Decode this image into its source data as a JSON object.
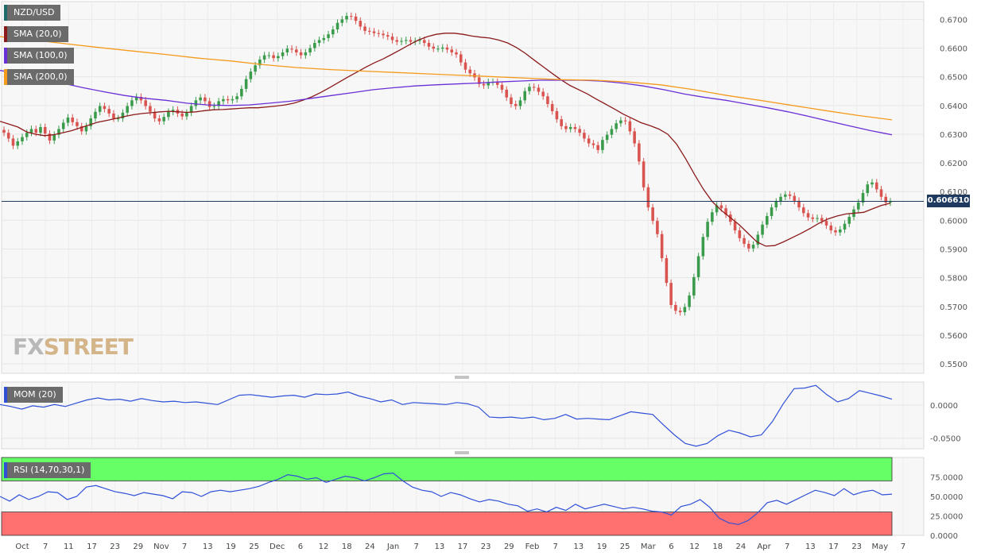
{
  "symbol": "NZD/USD",
  "last_price": "0.606610",
  "logo": {
    "a": "FX",
    "b": "STREET"
  },
  "indicators": {
    "sma20": {
      "label": "SMA (20,0)",
      "color": "#8b1a1a"
    },
    "sma100": {
      "label": "SMA (100,0)",
      "color": "#6a2fd6"
    },
    "sma200": {
      "label": "SMA (200,0)",
      "color": "#f59a1b"
    },
    "mom": {
      "label": "MOM (20)",
      "color": "#3050d8"
    },
    "rsi": {
      "label": "RSI (14,70,30,1)",
      "color": "#3050d8"
    }
  },
  "colors": {
    "bull": "#3a9b4a",
    "bear": "#d9534f",
    "overbought": "#66ff66",
    "oversold": "#ff7070",
    "price_line": "#1e3a5f"
  },
  "chart_data": [
    {
      "type": "candlestick",
      "title": "NZD/USD",
      "x_ticks": [
        "Oct",
        "7",
        "11",
        "17",
        "23",
        "29",
        "Nov",
        "7",
        "13",
        "19",
        "25",
        "Dec",
        "6",
        "12",
        "18",
        "24",
        "Jan",
        "7",
        "13",
        "17",
        "23",
        "29",
        "Feb",
        "7",
        "13",
        "19",
        "25",
        "Mar",
        "6",
        "12",
        "18",
        "24",
        "Apr",
        "7",
        "13",
        "17",
        "23",
        "May",
        "7"
      ],
      "y_ticks": [
        "0.6700",
        "0.6600",
        "0.6500",
        "0.6400",
        "0.6300",
        "0.6200",
        "0.6100",
        "0.6000",
        "0.5900",
        "0.5800",
        "0.5700",
        "0.5600",
        "0.5500"
      ],
      "ylim": [
        0.5467,
        0.6762
      ],
      "close": [
        0.6305,
        0.6285,
        0.626,
        0.6275,
        0.629,
        0.6305,
        0.6318,
        0.6305,
        0.6325,
        0.6302,
        0.6278,
        0.6298,
        0.6318,
        0.634,
        0.6358,
        0.6342,
        0.6328,
        0.631,
        0.6328,
        0.6355,
        0.6378,
        0.6398,
        0.6388,
        0.6372,
        0.6355,
        0.6355,
        0.6375,
        0.6398,
        0.6418,
        0.643,
        0.6418,
        0.6398,
        0.6378,
        0.6355,
        0.6345,
        0.636,
        0.6378,
        0.6385,
        0.6372,
        0.6362,
        0.6375,
        0.6398,
        0.6418,
        0.6428,
        0.6415,
        0.6395,
        0.6398,
        0.6415,
        0.6422,
        0.6418,
        0.6422,
        0.6432,
        0.6458,
        0.6492,
        0.6518,
        0.654,
        0.656,
        0.6575,
        0.6575,
        0.6565,
        0.6572,
        0.6585,
        0.6598,
        0.6595,
        0.6585,
        0.6575,
        0.6585,
        0.66,
        0.6618,
        0.6628,
        0.6635,
        0.6648,
        0.6665,
        0.6688,
        0.67,
        0.6712,
        0.671,
        0.6695,
        0.6675,
        0.666,
        0.6658,
        0.6652,
        0.665,
        0.6645,
        0.664,
        0.6628,
        0.6622,
        0.6625,
        0.6628,
        0.6622,
        0.6625,
        0.6628,
        0.6618,
        0.6605,
        0.6598,
        0.6598,
        0.6602,
        0.6595,
        0.6585,
        0.6578,
        0.655,
        0.6525,
        0.6512,
        0.6498,
        0.6475,
        0.647,
        0.6482,
        0.6482,
        0.6472,
        0.6455,
        0.6428,
        0.6405,
        0.6398,
        0.6418,
        0.645,
        0.6465,
        0.6462,
        0.6448,
        0.6432,
        0.6405,
        0.638,
        0.6352,
        0.6328,
        0.6318,
        0.6325,
        0.6318,
        0.6305,
        0.6285,
        0.6268,
        0.6262,
        0.6245,
        0.628,
        0.6298,
        0.6318,
        0.6338,
        0.6348,
        0.6345,
        0.631,
        0.6268,
        0.6205,
        0.6115,
        0.6045,
        0.5998,
        0.5952,
        0.5868,
        0.5782,
        0.5705,
        0.5685,
        0.568,
        0.5698,
        0.5738,
        0.5802,
        0.5875,
        0.5942,
        0.5995,
        0.6028,
        0.6052,
        0.6042,
        0.602,
        0.5995,
        0.5965,
        0.5938,
        0.5918,
        0.5902,
        0.5915,
        0.595,
        0.5985,
        0.6015,
        0.6045,
        0.6065,
        0.6082,
        0.609,
        0.6085,
        0.6068,
        0.6045,
        0.6025,
        0.601,
        0.6005,
        0.6008,
        0.5998,
        0.5982,
        0.5965,
        0.5958,
        0.5968,
        0.5988,
        0.6012,
        0.6038,
        0.6062,
        0.6095,
        0.6125,
        0.6132,
        0.6108,
        0.6082,
        0.6062,
        0.6066
      ]
    },
    {
      "type": "line",
      "series": [
        {
          "name": "SMA (20,0)",
          "values": [
            0.6345,
            0.6335,
            0.6325,
            0.6308,
            0.63,
            0.6295,
            0.6298,
            0.6305,
            0.6312,
            0.6322,
            0.6332,
            0.6342,
            0.6348,
            0.6355,
            0.6362,
            0.6368,
            0.6372,
            0.6375,
            0.6378,
            0.638,
            0.6378,
            0.6376,
            0.6378,
            0.6382,
            0.6385,
            0.6386,
            0.6388,
            0.639,
            0.6392,
            0.6392,
            0.6395,
            0.6398,
            0.6402,
            0.6408,
            0.6418,
            0.643,
            0.6445,
            0.6462,
            0.648,
            0.6498,
            0.6515,
            0.6532,
            0.6548,
            0.6562,
            0.6578,
            0.6595,
            0.6612,
            0.6628,
            0.664,
            0.6648,
            0.6652,
            0.6652,
            0.6648,
            0.6642,
            0.6638,
            0.6635,
            0.6628,
            0.6618,
            0.6602,
            0.6582,
            0.6558,
            0.6535,
            0.6512,
            0.649,
            0.647,
            0.6455,
            0.644,
            0.6422,
            0.6405,
            0.6388,
            0.637,
            0.6355,
            0.634,
            0.633,
            0.6318,
            0.63,
            0.6265,
            0.6215,
            0.616,
            0.6108,
            0.6065,
            0.6035,
            0.601,
            0.5985,
            0.5955,
            0.5925,
            0.591,
            0.5912,
            0.5925,
            0.594,
            0.5955,
            0.5972,
            0.599,
            0.6005,
            0.6015,
            0.6022,
            0.6025,
            0.6028,
            0.604,
            0.6052,
            0.606
          ]
        },
        {
          "name": "SMA (100,0)",
          "values": [
            0.6522,
            0.651,
            0.6492,
            0.6478,
            0.6462,
            0.6448,
            0.6435,
            0.6425,
            0.6418,
            0.6408,
            0.6402,
            0.64,
            0.6402,
            0.6408,
            0.6415,
            0.6425,
            0.6435,
            0.6445,
            0.6455,
            0.6462,
            0.6468,
            0.6472,
            0.6475,
            0.6478,
            0.6482,
            0.6485,
            0.6488,
            0.6488,
            0.6488,
            0.6485,
            0.6478,
            0.6468,
            0.6455,
            0.644,
            0.6428,
            0.6418,
            0.6405,
            0.6392,
            0.6378,
            0.6362,
            0.6345,
            0.6328,
            0.6312,
            0.6298
          ]
        },
        {
          "name": "SMA (200,0)",
          "values": [
            0.664,
            0.6628,
            0.6615,
            0.6602,
            0.659,
            0.6578,
            0.6565,
            0.6555,
            0.6542,
            0.6532,
            0.6525,
            0.652,
            0.6515,
            0.651,
            0.6505,
            0.65,
            0.6495,
            0.649,
            0.6488,
            0.6482,
            0.6472,
            0.6455,
            0.6435,
            0.6418,
            0.64,
            0.6382,
            0.6365,
            0.635
          ]
        }
      ]
    },
    {
      "type": "line",
      "title": "MOM (20)",
      "y_ticks": [
        "0.0000",
        "-0.0500"
      ],
      "ylim": [
        -0.066,
        0.035
      ],
      "series": [
        {
          "name": "MOM (20)",
          "values": [
            0.001,
            -0.002,
            -0.006,
            -0.001,
            -0.003,
            0.001,
            -0.002,
            0.003,
            0.008,
            0.011,
            0.008,
            0.009,
            0.006,
            0.01,
            0.007,
            0.005,
            0.006,
            0.004,
            0.005,
            0.003,
            0.001,
            0.008,
            0.015,
            0.016,
            0.014,
            0.012,
            0.014,
            0.015,
            0.012,
            0.017,
            0.016,
            0.017,
            0.02,
            0.014,
            0.01,
            0.005,
            0.008,
            0.001,
            0.004,
            0.003,
            0.002,
            0.001,
            0.004,
            0.002,
            -0.003,
            -0.018,
            -0.019,
            -0.018,
            -0.02,
            -0.018,
            -0.022,
            -0.02,
            -0.014,
            -0.021,
            -0.02,
            -0.021,
            -0.022,
            -0.016,
            -0.01,
            -0.012,
            -0.014,
            -0.03,
            -0.045,
            -0.058,
            -0.062,
            -0.058,
            -0.046,
            -0.038,
            -0.042,
            -0.048,
            -0.045,
            -0.025,
            0.002,
            0.025,
            0.026,
            0.03,
            0.016,
            0.005,
            0.01,
            0.022,
            0.018,
            0.014,
            0.009
          ]
        }
      ]
    },
    {
      "type": "line",
      "title": "RSI (14,70,30,1)",
      "y_ticks": [
        "75.0000",
        "50.0000",
        "25.0000",
        "0.0000"
      ],
      "ylim": [
        0,
        100
      ],
      "series": [
        {
          "name": "RSI (14,70,30,1)",
          "values": [
            50,
            44,
            52,
            46,
            50,
            56,
            55,
            46,
            50,
            62,
            64,
            60,
            56,
            54,
            51,
            55,
            53,
            51,
            47,
            56,
            55,
            50,
            56,
            58,
            56,
            58,
            60,
            63,
            68,
            72,
            78,
            76,
            72,
            74,
            68,
            72,
            76,
            74,
            70,
            74,
            79,
            80,
            70,
            62,
            58,
            56,
            50,
            55,
            52,
            47,
            43,
            46,
            44,
            40,
            38,
            31,
            34,
            30,
            36,
            32,
            40,
            34,
            37,
            40,
            37,
            34,
            36,
            34,
            31,
            30,
            26,
            37,
            40,
            46,
            36,
            22,
            16,
            14,
            19,
            29,
            42,
            45,
            40,
            46,
            52,
            58,
            55,
            51,
            60,
            52,
            56,
            58,
            52,
            53
          ]
        }
      ]
    }
  ]
}
